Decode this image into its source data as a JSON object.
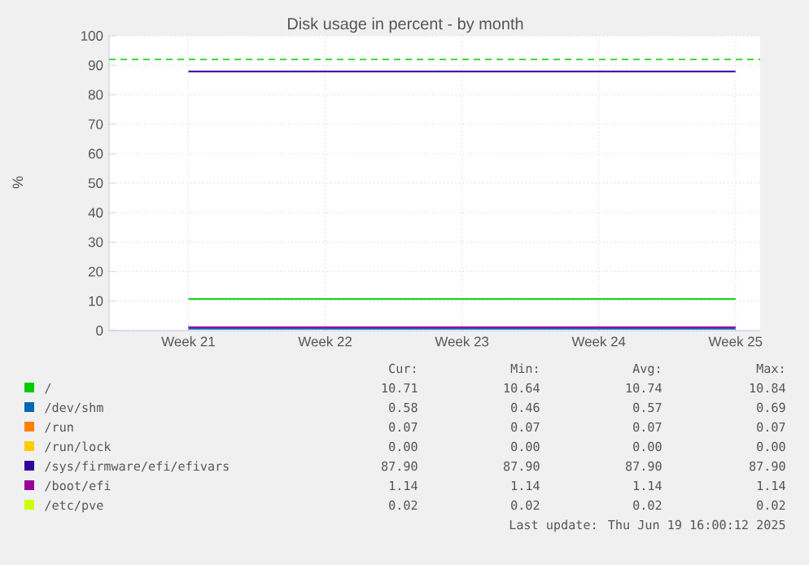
{
  "chart_data": {
    "type": "line",
    "title": "Disk usage in percent - by month",
    "ylabel": "%",
    "categories": [
      "Week 21",
      "Week 22",
      "Week 23",
      "Week 24",
      "Week 25"
    ],
    "ylim": [
      0,
      100
    ],
    "yticks": [
      0,
      10,
      20,
      30,
      40,
      50,
      60,
      70,
      80,
      90,
      100
    ],
    "grid": true,
    "legend": "bottom",
    "marker": "none",
    "line_style": "solid",
    "series": [
      {
        "name": "/",
        "color": "#00cc00",
        "values": [
          10.7,
          10.7,
          10.7,
          10.7,
          10.7
        ]
      },
      {
        "name": "/dev/shm",
        "color": "#0066b3",
        "values": [
          0.6,
          0.6,
          0.6,
          0.6,
          0.6
        ]
      },
      {
        "name": "/run",
        "color": "#ff8000",
        "values": [
          null,
          null,
          null,
          null,
          null
        ]
      },
      {
        "name": "/run/lock",
        "color": "#ffcc00",
        "values": [
          null,
          null,
          null,
          null,
          null
        ]
      },
      {
        "name": "/sys/firmware/efi/efivars",
        "color": "#330099",
        "values": [
          87.9,
          87.9,
          87.9,
          87.9,
          87.9
        ]
      },
      {
        "name": "/boot/efi",
        "color": "#990099",
        "values": [
          1.1,
          1.1,
          1.1,
          1.1,
          1.1
        ]
      },
      {
        "name": "/etc/pve",
        "color": "#ccff00",
        "values": [
          null,
          null,
          null,
          null,
          null
        ]
      }
    ],
    "ref_lines": [
      {
        "axis": "y",
        "value": 92,
        "color": "#00cc00",
        "line_style": "dashed"
      }
    ],
    "annotations": [
      "Cur:",
      "Min:",
      "Avg:",
      "Max:",
      "10.71",
      "10.64",
      "10.74",
      "10.84",
      "0.58",
      "0.46",
      "0.57",
      "0.69",
      "0.07",
      "0.07",
      "0.07",
      "0.07",
      "0.00",
      "0.00",
      "0.00",
      "0.00",
      "87.90",
      "87.90",
      "87.90",
      "87.90",
      "1.14",
      "1.14",
      "1.14",
      "1.14",
      "0.02",
      "0.02",
      "0.02",
      "0.02",
      "Last update: Thu Jun 19 16:00:12 2025"
    ]
  }
}
